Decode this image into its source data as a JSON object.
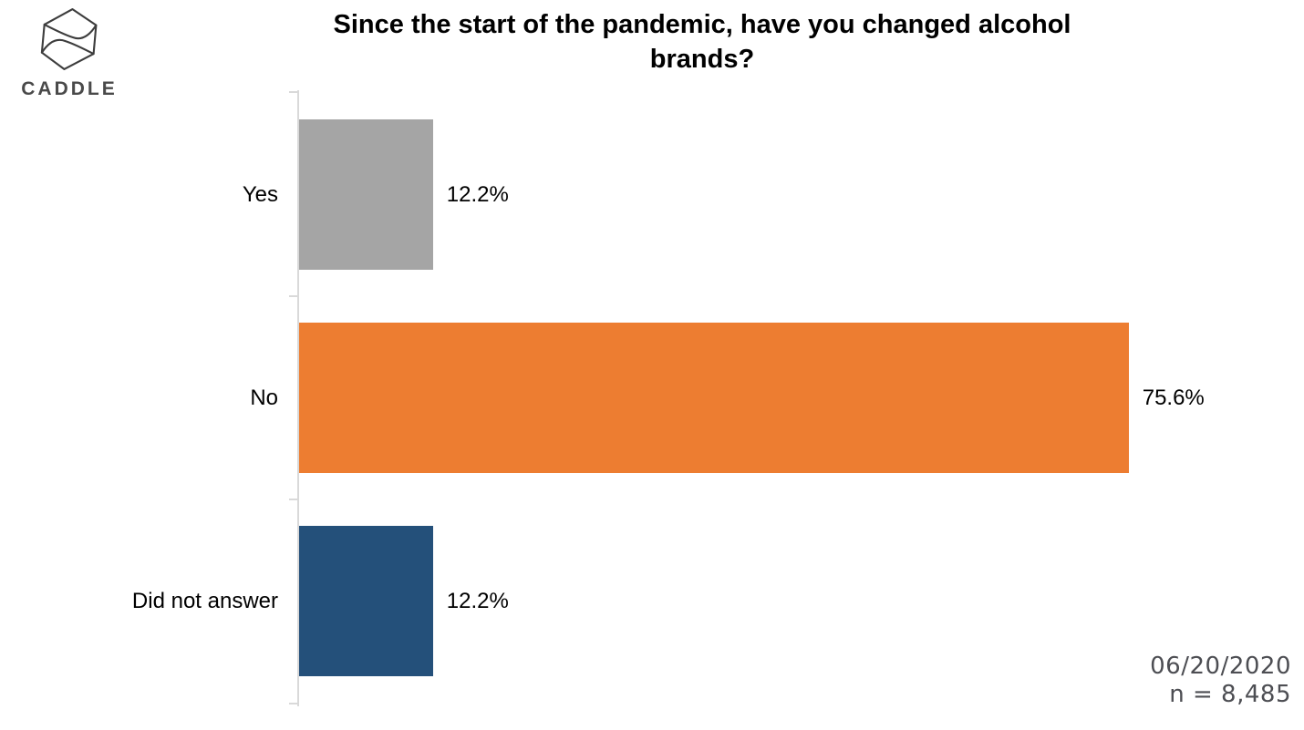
{
  "header": {
    "brand": "CADDLE"
  },
  "title_lines": [
    "Since the start of the pandemic, have you changed alcohol",
    "brands?"
  ],
  "footer": {
    "date": "06/20/2020",
    "sample_size": "n = 8,485"
  },
  "chart_data": {
    "type": "bar",
    "orientation": "horizontal",
    "title": "Since the start of the pandemic, have you changed alcohol brands?",
    "categories": [
      "Yes",
      "No",
      "Did not answer"
    ],
    "values": [
      12.2,
      75.6,
      12.2
    ],
    "value_labels": [
      "12.2%",
      "75.6%",
      "12.2%"
    ],
    "bar_colors": [
      "#A5A5A5",
      "#ED7D31",
      "#24507A"
    ],
    "axis_color": "#D9D9D9",
    "xlim": [
      0,
      90
    ],
    "grid": false,
    "legend": "none",
    "annotations": [
      "06/20/2020",
      "n = 8,485"
    ]
  }
}
